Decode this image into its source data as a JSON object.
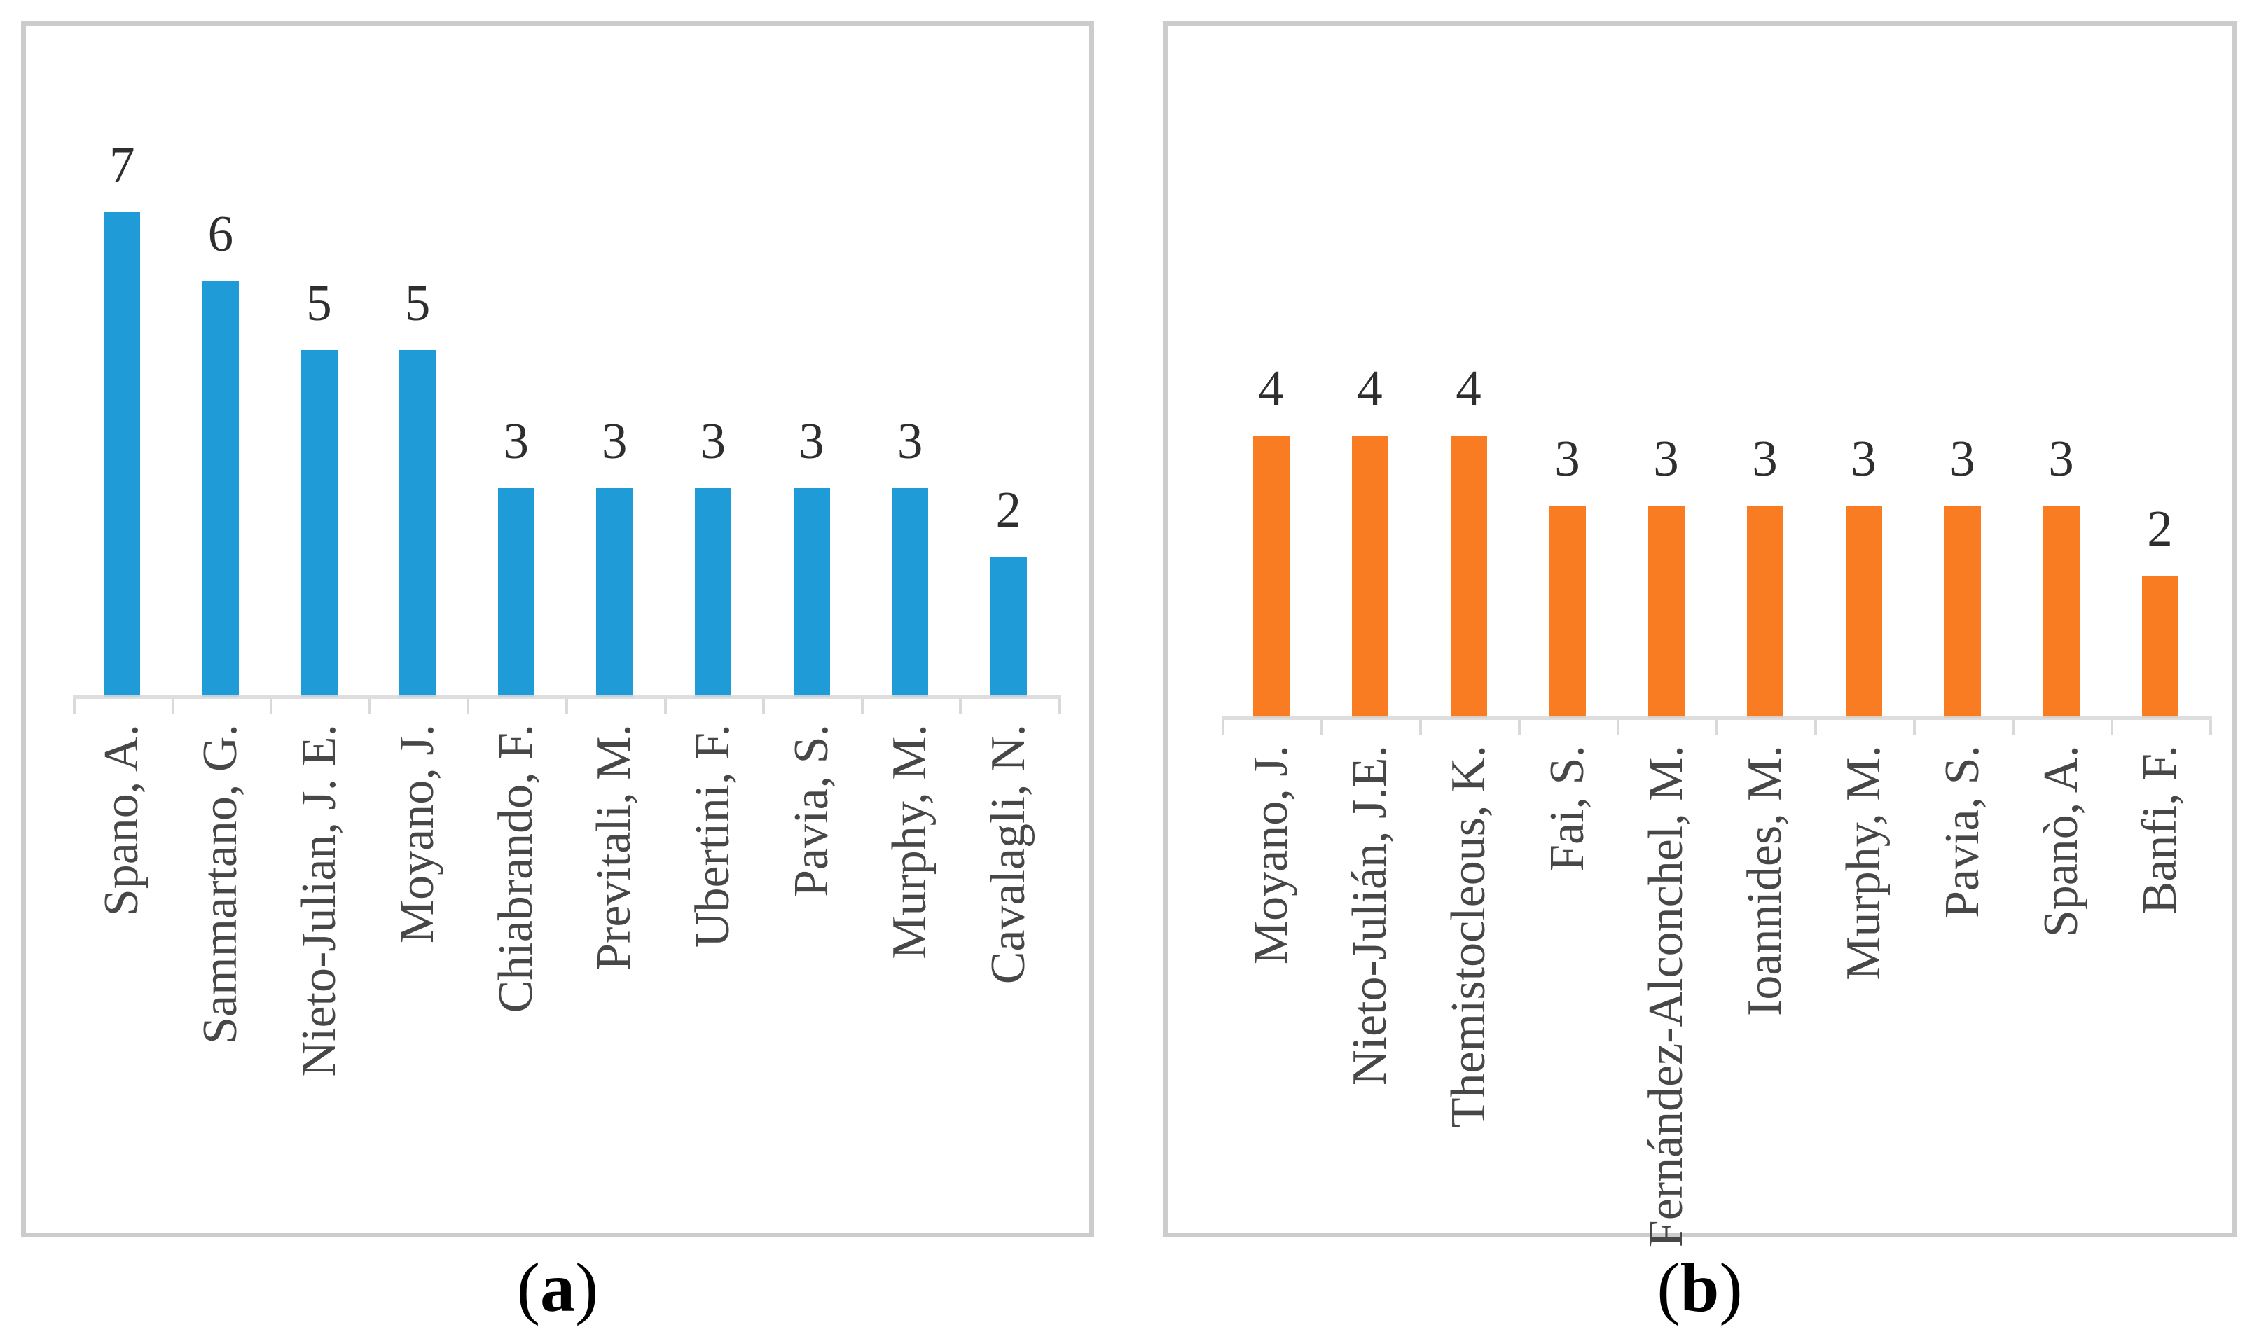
{
  "page": {
    "background": "#ffffff",
    "panel_border_color": "#cccccc",
    "axis_color": "#d9d9d9",
    "value_label_color": "#2e2e2e",
    "category_label_color": "#474747"
  },
  "chart_data": [
    {
      "id": "a",
      "type": "bar",
      "title": "",
      "xlabel": "",
      "ylabel": "",
      "legend": "none",
      "grid": "off",
      "bar_color": "#1f9bd8",
      "ylim": [
        0,
        7
      ],
      "categories": [
        "Spano, A.",
        "Sammartano, G.",
        "Nieto-Julian, J. E.",
        "Moyano, J.",
        "Chiabrando, F.",
        "Previtali, M.",
        "Ubertini, F.",
        "Pavia, S.",
        "Murphy, M.",
        "Cavalagli, N."
      ],
      "values": [
        7,
        6,
        5,
        5,
        3,
        3,
        3,
        3,
        3,
        2
      ],
      "data_labels": [
        "7",
        "6",
        "5",
        "5",
        "3",
        "3",
        "3",
        "3",
        "3",
        "2"
      ],
      "caption": {
        "open": "(",
        "letter": "a",
        "close": ")"
      }
    },
    {
      "id": "b",
      "type": "bar",
      "title": "",
      "xlabel": "",
      "ylabel": "",
      "legend": "none",
      "grid": "off",
      "bar_color": "#f97c22",
      "ylim": [
        0,
        4
      ],
      "categories": [
        "Moyano, J.",
        "Nieto-Julián, J.E.",
        "Themistocleous, K.",
        "Fai, S.",
        "Fernández-Alconchel, M.",
        "Ioannides, M.",
        "Murphy, M.",
        "Pavia, S.",
        "Spanò, A.",
        "Banfi, F."
      ],
      "values": [
        4,
        4,
        4,
        3,
        3,
        3,
        3,
        3,
        3,
        2
      ],
      "data_labels": [
        "4",
        "4",
        "4",
        "3",
        "3",
        "3",
        "3",
        "3",
        "3",
        "2"
      ],
      "caption": {
        "open": "(",
        "letter": "b",
        "close": ")"
      }
    }
  ]
}
